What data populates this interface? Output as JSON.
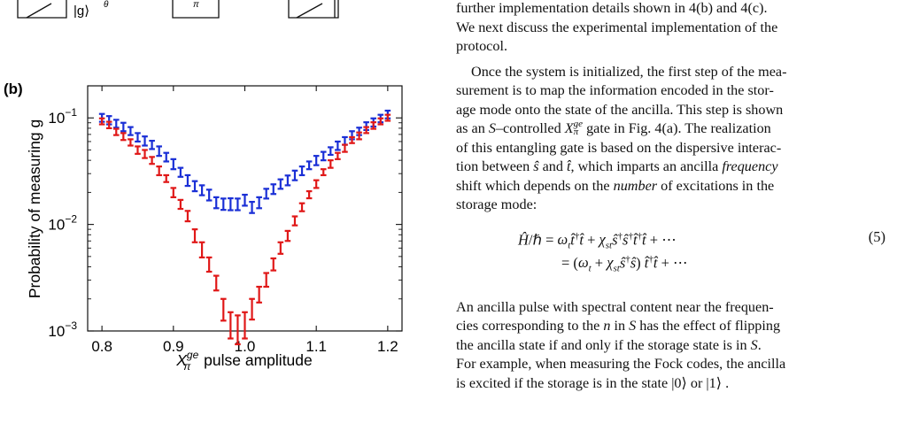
{
  "figure": {
    "panel_label": "(b)",
    "top_strip_ket": "|g⟩",
    "top_strip_glyph_1": "θ",
    "top_strip_glyph_2": "π"
  },
  "chart_data": {
    "type": "scatter",
    "title": "",
    "xlabel": "X_π^ge pulse amplitude",
    "xlabel_parts": {
      "main": "X",
      "sub": "π",
      "sup": "ge",
      "rest": " pulse amplitude"
    },
    "ylabel": "Probability of measuring g",
    "xlim": [
      0.78,
      1.22
    ],
    "ylim": [
      0.001,
      0.2
    ],
    "yscale": "log",
    "x_ticks": [
      "0.8",
      "0.9",
      "1.0",
      "1.1",
      "1.2"
    ],
    "x_tick_values": [
      0.8,
      0.9,
      1.0,
      1.1,
      1.2
    ],
    "y_ticks": [
      {
        "value": 0.1,
        "base": "10",
        "exp": "−1"
      },
      {
        "value": 0.01,
        "base": "10",
        "exp": "−2"
      },
      {
        "value": 0.001,
        "base": "10",
        "exp": "−3"
      }
    ],
    "marker": "error-bar",
    "series": [
      {
        "color": "#1a2fd6",
        "x": [
          0.8,
          0.81,
          0.82,
          0.83,
          0.84,
          0.85,
          0.86,
          0.87,
          0.88,
          0.89,
          0.9,
          0.91,
          0.92,
          0.93,
          0.94,
          0.95,
          0.96,
          0.97,
          0.98,
          0.99,
          1.0,
          1.01,
          1.02,
          1.03,
          1.04,
          1.05,
          1.06,
          1.07,
          1.08,
          1.09,
          1.1,
          1.11,
          1.12,
          1.13,
          1.14,
          1.15,
          1.16,
          1.17,
          1.18,
          1.19,
          1.2
        ],
        "y": [
          0.1,
          0.095,
          0.088,
          0.082,
          0.075,
          0.066,
          0.061,
          0.056,
          0.049,
          0.043,
          0.037,
          0.031,
          0.026,
          0.023,
          0.021,
          0.019,
          0.016,
          0.0155,
          0.0155,
          0.0155,
          0.017,
          0.0145,
          0.016,
          0.0195,
          0.0215,
          0.024,
          0.026,
          0.029,
          0.032,
          0.036,
          0.04,
          0.044,
          0.049,
          0.055,
          0.061,
          0.069,
          0.075,
          0.084,
          0.091,
          0.099,
          0.108
        ],
        "yerr_lo": [
          0.092,
          0.087,
          0.081,
          0.075,
          0.069,
          0.06,
          0.055,
          0.051,
          0.044,
          0.039,
          0.033,
          0.028,
          0.023,
          0.0205,
          0.0188,
          0.0168,
          0.0142,
          0.0137,
          0.0136,
          0.0136,
          0.015,
          0.0128,
          0.0142,
          0.0175,
          0.0193,
          0.0216,
          0.0233,
          0.026,
          0.029,
          0.033,
          0.036,
          0.04,
          0.045,
          0.05,
          0.056,
          0.063,
          0.069,
          0.077,
          0.083,
          0.091,
          0.099
        ],
        "yerr_hi": [
          0.109,
          0.104,
          0.096,
          0.09,
          0.082,
          0.072,
          0.067,
          0.061,
          0.054,
          0.047,
          0.041,
          0.034,
          0.029,
          0.0255,
          0.0233,
          0.0212,
          0.018,
          0.0175,
          0.0176,
          0.0175,
          0.019,
          0.0163,
          0.018,
          0.0216,
          0.0238,
          0.0265,
          0.0288,
          0.032,
          0.035,
          0.039,
          0.044,
          0.048,
          0.053,
          0.06,
          0.066,
          0.075,
          0.081,
          0.091,
          0.099,
          0.107,
          0.117
        ]
      },
      {
        "color": "#e01818",
        "x": [
          0.8,
          0.81,
          0.82,
          0.83,
          0.84,
          0.85,
          0.86,
          0.87,
          0.88,
          0.89,
          0.9,
          0.91,
          0.92,
          0.93,
          0.94,
          0.95,
          0.96,
          0.97,
          0.98,
          0.99,
          1.0,
          1.01,
          1.02,
          1.03,
          1.04,
          1.05,
          1.06,
          1.07,
          1.08,
          1.09,
          1.1,
          1.11,
          1.12,
          1.13,
          1.14,
          1.15,
          1.16,
          1.17,
          1.18,
          1.19,
          1.2
        ],
        "y": [
          0.093,
          0.086,
          0.074,
          0.067,
          0.059,
          0.05,
          0.046,
          0.04,
          0.032,
          0.027,
          0.02,
          0.0155,
          0.012,
          0.0078,
          0.0058,
          0.0042,
          0.0028,
          0.0016,
          0.0011,
          0.00105,
          0.0011,
          0.0016,
          0.0022,
          0.003,
          0.0042,
          0.006,
          0.0078,
          0.0108,
          0.0145,
          0.019,
          0.024,
          0.031,
          0.037,
          0.044,
          0.052,
          0.062,
          0.068,
          0.077,
          0.085,
          0.093,
          0.1
        ],
        "yerr_lo": [
          0.087,
          0.08,
          0.069,
          0.062,
          0.055,
          0.046,
          0.042,
          0.037,
          0.029,
          0.025,
          0.018,
          0.014,
          0.0107,
          0.0068,
          0.0049,
          0.0036,
          0.0024,
          0.00125,
          0.00085,
          0.00075,
          0.00085,
          0.00128,
          0.00185,
          0.0026,
          0.0037,
          0.0053,
          0.007,
          0.0098,
          0.0133,
          0.0176,
          0.022,
          0.029,
          0.034,
          0.041,
          0.048,
          0.058,
          0.063,
          0.072,
          0.079,
          0.087,
          0.094
        ],
        "yerr_hi": [
          0.099,
          0.092,
          0.079,
          0.072,
          0.063,
          0.054,
          0.05,
          0.043,
          0.035,
          0.029,
          0.022,
          0.017,
          0.0134,
          0.009,
          0.0068,
          0.0049,
          0.0033,
          0.002,
          0.0015,
          0.0014,
          0.0015,
          0.002,
          0.0026,
          0.0035,
          0.0048,
          0.0068,
          0.0087,
          0.0119,
          0.0158,
          0.0205,
          0.026,
          0.033,
          0.04,
          0.047,
          0.056,
          0.066,
          0.073,
          0.082,
          0.091,
          0.099,
          0.107
        ]
      }
    ]
  },
  "text": {
    "para1_line1": "further implementation details shown in 4(b) and 4(c).",
    "para1_line2": "We next discuss the experimental implementation of the",
    "para1_line3": "protocol.",
    "para2": [
      {
        "t": "Once the system is initialized, the first step of the mea-"
      },
      {
        "t": "surement is to map the information encoded in the stor-"
      },
      {
        "t": "age mode onto the state of the ancilla. This step is shown"
      },
      {
        "t": "as an S–controlled X gate in Fig. 4(a). The realization"
      },
      {
        "t": "of this entangling gate is based on the dispersive interac-"
      },
      {
        "t": "tion between ŝ and t̂, which imparts an ancilla frequency"
      },
      {
        "t": "shift which depends on the number of excitations in the"
      },
      {
        "t": "storage mode:"
      }
    ],
    "p2_s": "S",
    "p2_gate_x": "X",
    "p2_gate_sup": "ge",
    "p2_gate_sub": "π",
    "p2_frequency": "frequency",
    "p2_number": "number",
    "eq_line1": "Ĥ/ℏ = ω_t t̂†t̂ + χ_st ŝ†ŝ†t̂†t̂ + ⋯",
    "eq_line2": "= (ω_t + χ_st ŝ†ŝ) t̂†t̂ + ⋯",
    "eq_number": "(5)",
    "para3": [
      "An ancilla pulse with spectral content near the frequen-",
      "cies corresponding to the n in S has the effect of flipping",
      "the ancilla state if and only if the storage state is in S.",
      "For example, when measuring the Fock codes, the ancilla",
      "is excited if the storage is in the state |0⟩ or |1⟩ ."
    ]
  }
}
